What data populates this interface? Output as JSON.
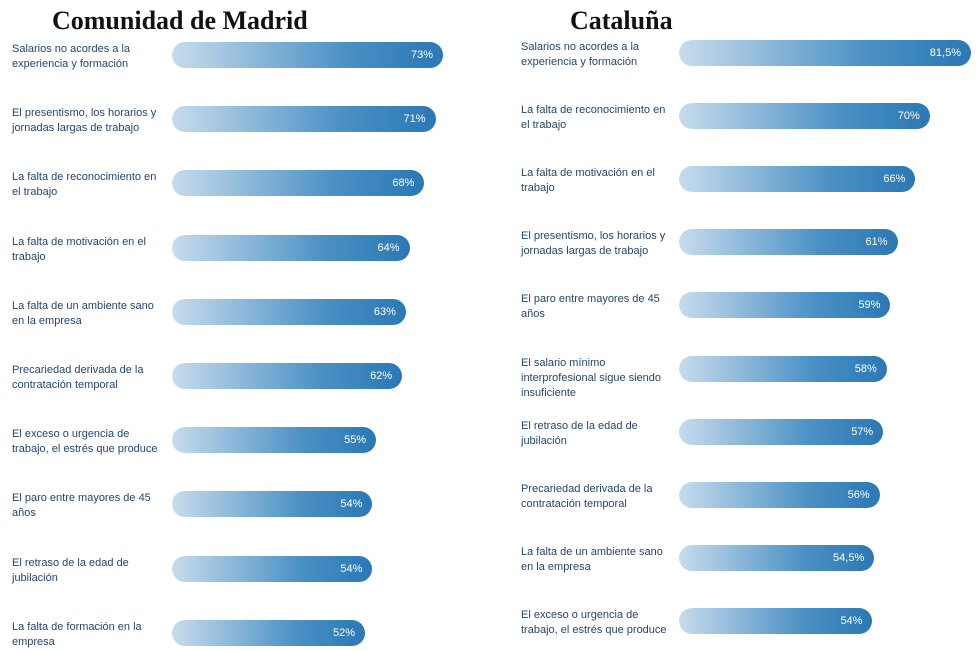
{
  "chart_data": [
    {
      "type": "bar",
      "orientation": "horizontal",
      "title": "Comunidad de Madrid",
      "categories": [
        "Salarios no acordes a la experiencia y formación",
        "El presentismo, los horarios y jornadas largas de trabajo",
        "La falta de reconocimiento en el trabajo",
        "La falta de motivación en el trabajo",
        "La falta de un ambiente sano en la empresa",
        "Precariedad derivada de la contratación temporal",
        "El exceso o urgencia de trabajo, el estrés que produce",
        "El paro entre mayores de 45 años",
        "El retraso de la edad de jubilación",
        "La falta de formación en la empresa"
      ],
      "values": [
        73,
        71,
        68,
        64,
        63,
        62,
        55,
        54,
        54,
        52
      ],
      "value_labels": [
        "73%",
        "71%",
        "68%",
        "64%",
        "63%",
        "62%",
        "55%",
        "54%",
        "54%",
        "52%"
      ],
      "unit": "%",
      "grid": false
    },
    {
      "type": "bar",
      "orientation": "horizontal",
      "title": "Cataluña",
      "categories": [
        "Salarios no acordes a la experiencia y formación",
        "La falta de reconocimiento en el trabajo",
        "La falta de motivación en el trabajo",
        "El presentismo, los horarios y jornadas largas de trabajo",
        "El paro entre mayores de 45 años",
        "El salario mínimo interprofesional sigue siendo insuficiente",
        "El retraso de la edad de jubilación",
        "Precariedad derivada de la contratación temporal",
        "La falta de un ambiente sano en la empresa",
        "El exceso o urgencia de trabajo, el estrés que produce"
      ],
      "values": [
        81.5,
        70,
        66,
        61,
        59,
        58,
        57,
        56,
        54.5,
        54
      ],
      "value_labels": [
        "81,5%",
        "70%",
        "66%",
        "61%",
        "59%",
        "58%",
        "57%",
        "56%",
        "54,5%",
        "54%"
      ],
      "unit": "%",
      "grid": false
    }
  ],
  "colors": {
    "bar_start": "#c7dced",
    "bar_end": "#2b78b5",
    "label_text": "#24466e",
    "value_text": "#ffffff"
  }
}
